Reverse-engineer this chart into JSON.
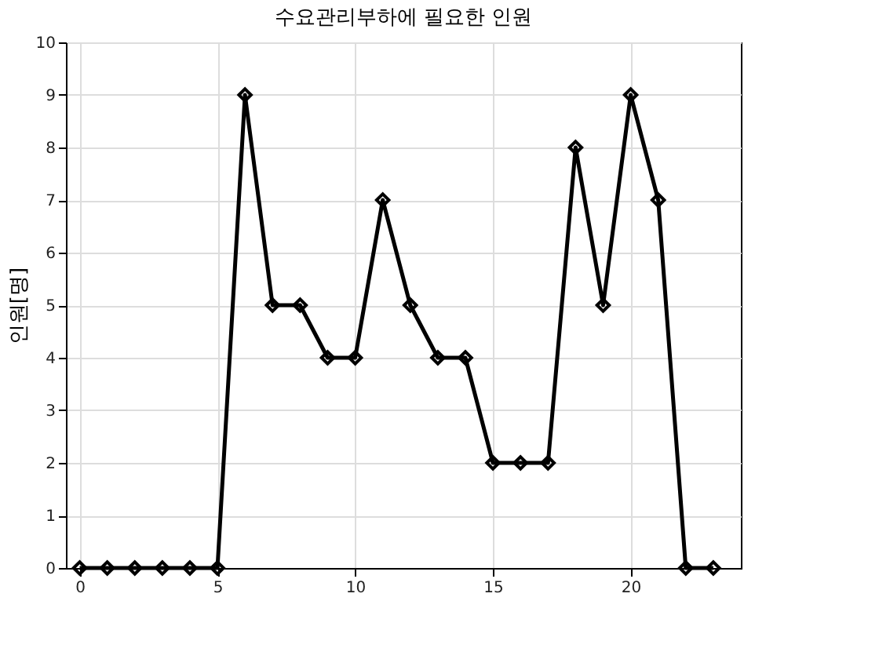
{
  "chart_data": {
    "type": "line",
    "title": "수요관리부하에 필요한 인원",
    "ylabel": "인원[명]",
    "x": [
      0,
      1,
      2,
      3,
      4,
      5,
      6,
      7,
      8,
      9,
      10,
      11,
      12,
      13,
      14,
      15,
      16,
      17,
      18,
      19,
      20,
      21,
      22,
      23
    ],
    "series": [
      {
        "color": "#000000",
        "values": [
          0,
          0,
          0,
          0,
          0,
          0,
          9,
          5,
          5,
          4,
          4,
          7,
          5,
          4,
          4,
          2,
          2,
          2,
          8,
          5,
          9,
          7,
          0,
          0
        ]
      }
    ],
    "xlim": [
      -0.5,
      24
    ],
    "xticks": [
      0,
      5,
      10,
      15,
      20
    ],
    "ylim": [
      0,
      10
    ],
    "yticks": [
      0,
      1,
      2,
      3,
      4,
      5,
      6,
      7,
      8,
      9,
      10
    ],
    "grid": true,
    "marker": "diamond",
    "line_style": "solid"
  }
}
